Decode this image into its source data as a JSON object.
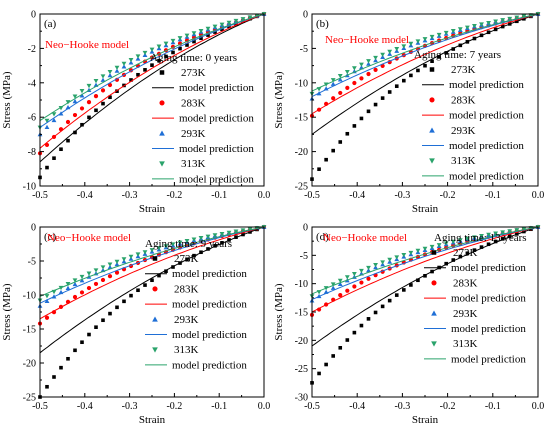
{
  "colors": {
    "273K": "#000000",
    "283K": "#ff0000",
    "293K": "#1f6fd6",
    "313K": "#2aa36b",
    "model_title": "#ff0000",
    "axis": "#000000"
  },
  "chart_data": [
    {
      "type": "scatter",
      "panel_label": "(a)",
      "model_title": "Neo−Hooke model",
      "aging_label": "Aging time: 0 years",
      "xlabel": "Strain",
      "ylabel": "Stress (MPa)",
      "xlim": [
        -0.5,
        0.0
      ],
      "ylim": [
        -10,
        0
      ],
      "xticks": [
        -0.5,
        -0.4,
        -0.3,
        -0.2,
        -0.1,
        0.0
      ],
      "xtick_labels": [
        "-0.5",
        "-0.4",
        "-0.3",
        "-0.2",
        "-0.1",
        "0.0"
      ],
      "yticks": [
        -10,
        -8,
        -6,
        -4,
        -2,
        0
      ],
      "ytick_labels": [
        "-10",
        "-8",
        "-6",
        "-4",
        "-2",
        "0"
      ],
      "legend_position": "right",
      "legend": [
        "273K",
        "model prediction",
        "283K",
        "model prediction",
        "293K",
        "model prediction",
        "313K",
        "model prediction"
      ],
      "series": [
        {
          "name": "273K",
          "marker": "square",
          "model_min": -8.6,
          "data_min": -9.5
        },
        {
          "name": "283K",
          "marker": "circle",
          "model_min": -7.8,
          "data_min": -8.1
        },
        {
          "name": "293K",
          "marker": "triangle-up",
          "model_min": -6.6,
          "data_min": -7.0
        },
        {
          "name": "313K",
          "marker": "triangle-down",
          "model_min": -6.2,
          "data_min": -6.6
        }
      ]
    },
    {
      "type": "scatter",
      "panel_label": "(b)",
      "model_title": "Neo−Hooke model",
      "aging_label": "Aging time: 7 years",
      "xlabel": "Strain",
      "ylabel": "Stress (MPa)",
      "xlim": [
        -0.5,
        0.0
      ],
      "ylim": [
        -25,
        0
      ],
      "xticks": [
        -0.5,
        -0.4,
        -0.3,
        -0.2,
        -0.1,
        0.0
      ],
      "xtick_labels": [
        "-0.5",
        "-0.4",
        "-0.3",
        "-0.2",
        "-0.1",
        "0.0"
      ],
      "yticks": [
        -25,
        -20,
        -15,
        -10,
        -5,
        0
      ],
      "ytick_labels": [
        "-25",
        "-20",
        "-15",
        "-10",
        "-5",
        "0"
      ],
      "legend_position": "right",
      "legend": [
        "273K",
        "model prediction",
        "283K",
        "model prediction",
        "293K",
        "model prediction",
        "313K",
        "model prediction"
      ],
      "series": [
        {
          "name": "273K",
          "marker": "square",
          "model_min": -17.5,
          "data_min": -24.0
        },
        {
          "name": "283K",
          "marker": "circle",
          "model_min": -14.5,
          "data_min": -14.8
        },
        {
          "name": "293K",
          "marker": "triangle-up",
          "model_min": -12.0,
          "data_min": -12.3
        },
        {
          "name": "313K",
          "marker": "triangle-down",
          "model_min": -11.2,
          "data_min": -11.6
        }
      ]
    },
    {
      "type": "scatter",
      "panel_label": "(c)",
      "model_title": "Neo−Hooke model",
      "aging_label": "Aging time: 9 years",
      "xlabel": "Strain",
      "ylabel": "Stress (MPa)",
      "xlim": [
        -0.5,
        0.0
      ],
      "ylim": [
        -25,
        0
      ],
      "xticks": [
        -0.5,
        -0.4,
        -0.3,
        -0.2,
        -0.1,
        0.0
      ],
      "xtick_labels": [
        "-0.5",
        "-0.4",
        "-0.3",
        "-0.2",
        "-0.1",
        "0.0"
      ],
      "yticks": [
        -25,
        -20,
        -15,
        -10,
        -5,
        0
      ],
      "ytick_labels": [
        "-25",
        "-20",
        "-15",
        "-10",
        "-5",
        "0"
      ],
      "legend_position": "right",
      "legend": [
        "273K",
        "model prediction",
        "283K",
        "model prediction",
        "293K",
        "model prediction",
        "313K",
        "model prediction"
      ],
      "series": [
        {
          "name": "273K",
          "marker": "square",
          "model_min": -18.5,
          "data_min": -25.0
        },
        {
          "name": "283K",
          "marker": "circle",
          "model_min": -13.5,
          "data_min": -14.2
        },
        {
          "name": "293K",
          "marker": "triangle-up",
          "model_min": -11.2,
          "data_min": -11.6
        },
        {
          "name": "313K",
          "marker": "triangle-down",
          "model_min": -10.2,
          "data_min": -10.8
        }
      ]
    },
    {
      "type": "scatter",
      "panel_label": "(d)",
      "model_title": "Neo−Hooke model",
      "aging_label": "Aging time: 13 years",
      "xlabel": "Strain",
      "ylabel": "Stress (MPa)",
      "xlim": [
        -0.5,
        0.0
      ],
      "ylim": [
        -30,
        0
      ],
      "xticks": [
        -0.5,
        -0.4,
        -0.3,
        -0.2,
        -0.1,
        0.0
      ],
      "xtick_labels": [
        "-0.5",
        "-0.4",
        "-0.3",
        "-0.2",
        "-0.1",
        "0.0"
      ],
      "yticks": [
        -30,
        -25,
        -20,
        -15,
        -10,
        -5,
        0
      ],
      "ytick_labels": [
        "-30",
        "-25",
        "-20",
        "-15",
        "-10",
        "-5",
        "0"
      ],
      "legend_position": "right",
      "legend": [
        "273K",
        "model prediction",
        "283K",
        "model prediction",
        "293K",
        "model prediction",
        "313K",
        "model prediction"
      ],
      "series": [
        {
          "name": "273K",
          "marker": "square",
          "model_min": -21.0,
          "data_min": -27.5
        },
        {
          "name": "283K",
          "marker": "circle",
          "model_min": -15.0,
          "data_min": -15.5
        },
        {
          "name": "293K",
          "marker": "triangle-up",
          "model_min": -12.8,
          "data_min": -13.0
        },
        {
          "name": "313K",
          "marker": "triangle-down",
          "model_min": -11.8,
          "data_min": -12.2
        }
      ]
    }
  ]
}
